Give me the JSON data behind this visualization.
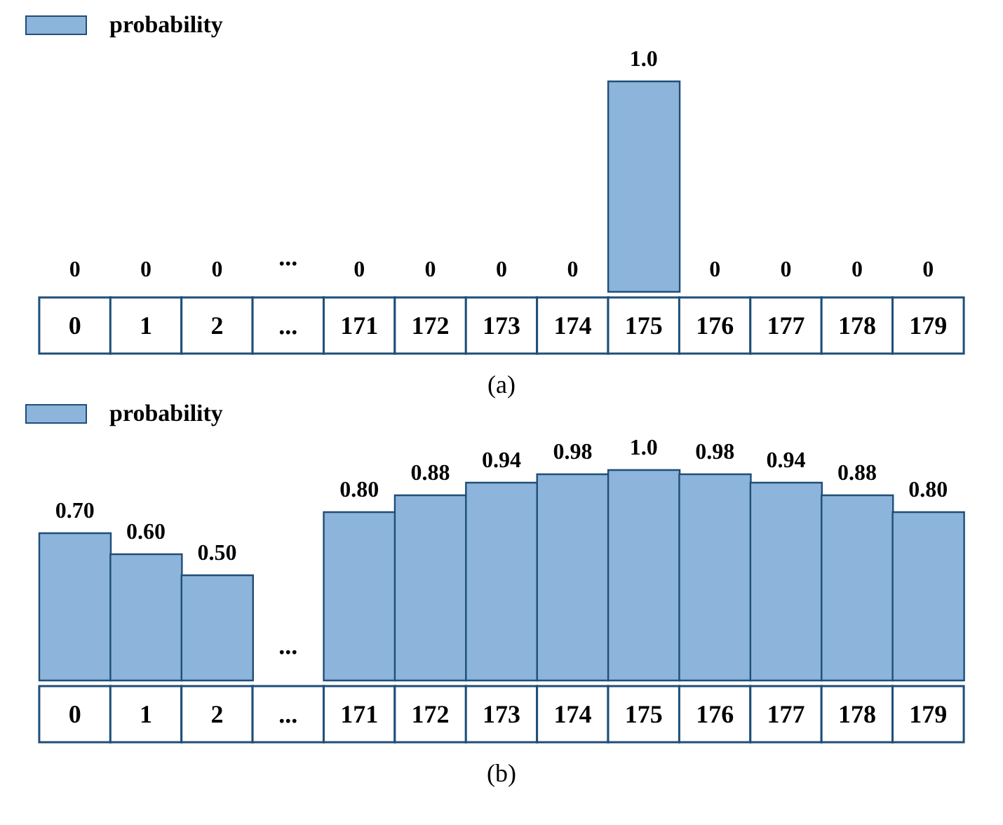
{
  "chart_data": [
    {
      "type": "bar",
      "title": "(a)",
      "categories": [
        "0",
        "1",
        "2",
        "...",
        "171",
        "172",
        "173",
        "174",
        "175",
        "176",
        "177",
        "178",
        "179"
      ],
      "series": [
        {
          "name": "probability",
          "color": "#8db4da",
          "values": [
            0,
            0,
            0,
            null,
            0,
            0,
            0,
            0,
            1.0,
            0,
            0,
            0,
            0
          ],
          "value_labels": [
            "0",
            "0",
            "0",
            null,
            "0",
            "0",
            "0",
            "0",
            "1.0",
            "0",
            "0",
            "0",
            "0"
          ]
        }
      ],
      "annotations": [
        "..."
      ],
      "legend": "top left",
      "grid": false,
      "tick_labels": "x"
    },
    {
      "type": "bar",
      "title": "(b)",
      "categories": [
        "0",
        "1",
        "2",
        "...",
        "171",
        "172",
        "173",
        "174",
        "175",
        "176",
        "177",
        "178",
        "179"
      ],
      "series": [
        {
          "name": "probability",
          "color": "#8db4da",
          "values": [
            0.7,
            0.6,
            0.5,
            null,
            0.8,
            0.88,
            0.94,
            0.98,
            1.0,
            0.98,
            0.94,
            0.88,
            0.8
          ],
          "value_labels": [
            "0.70",
            "0.60",
            "0.50",
            null,
            "0.80",
            "0.88",
            "0.94",
            "0.98",
            "1.0",
            "0.98",
            "0.94",
            "0.88",
            "0.80"
          ]
        }
      ],
      "annotations": [
        "..."
      ],
      "legend": "top left",
      "grid": false,
      "tick_labels": "x"
    }
  ]
}
